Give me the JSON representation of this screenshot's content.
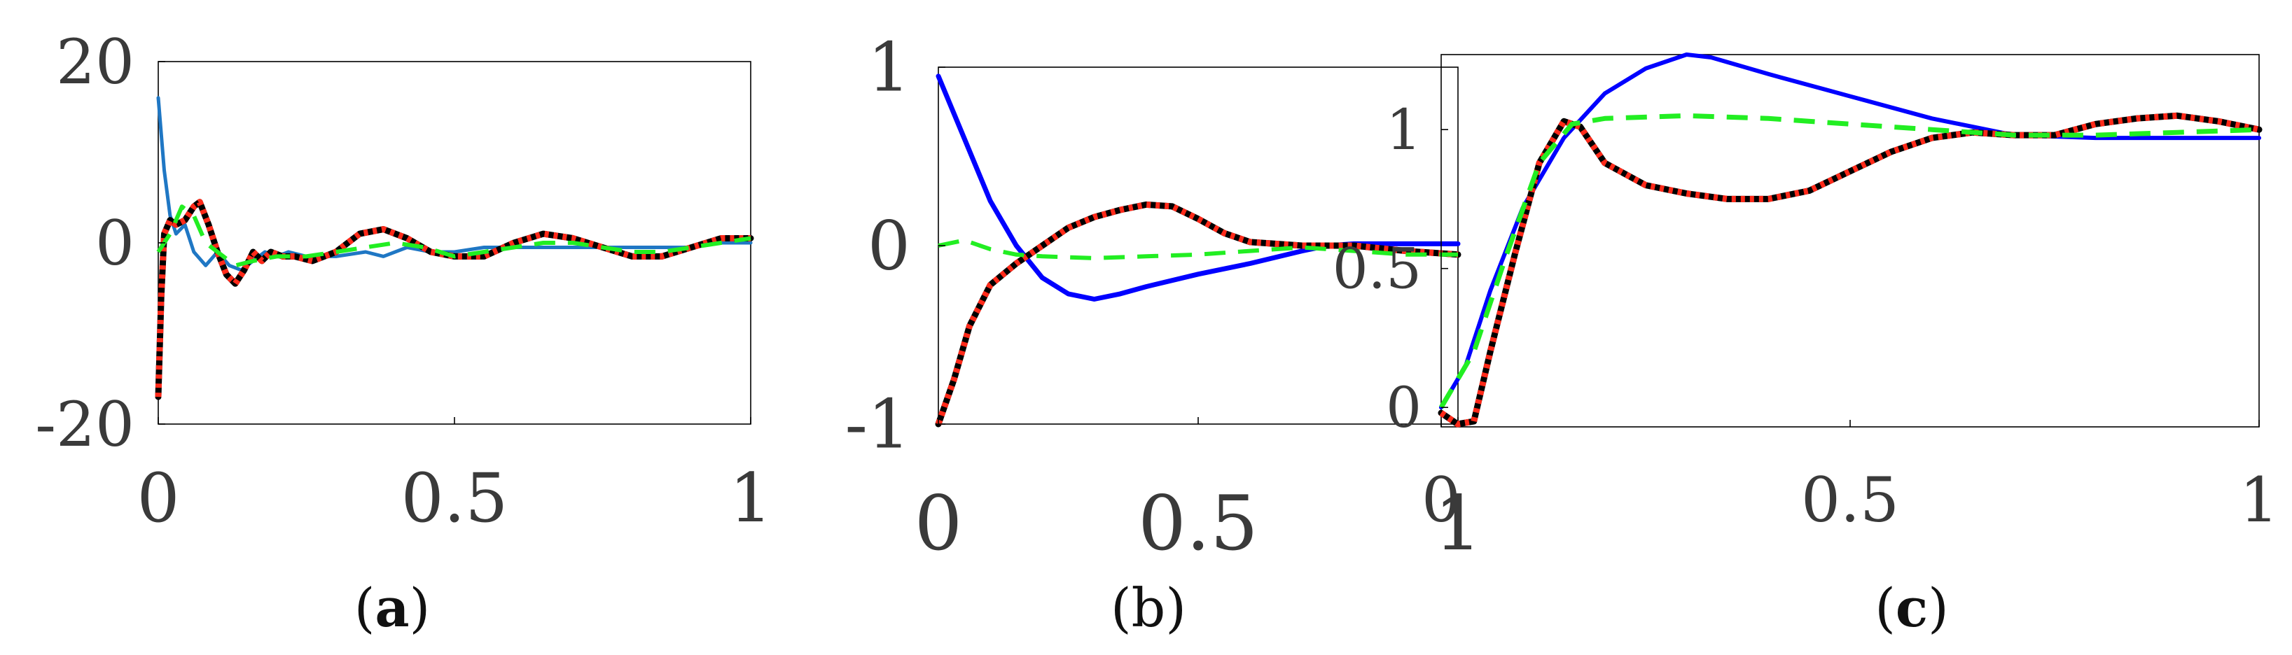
{
  "colors": {
    "blue": "#0000ff",
    "steelblue": "#1f77c4",
    "green": "#22ee22",
    "red": "#ff2a1a",
    "black": "#000000"
  },
  "chart_data": [
    {
      "type": "line",
      "caption": "a",
      "xlim": [
        0,
        1
      ],
      "ylim": [
        -20,
        20
      ],
      "xticks": [
        0,
        0.5,
        1
      ],
      "xtick_labels": [
        "0",
        "0.5",
        "1"
      ],
      "yticks": [
        -20,
        0,
        20
      ],
      "ytick_labels": [
        "-20",
        "0",
        "20"
      ],
      "grid": false,
      "series": [
        {
          "color": "#1f77c4",
          "style": "solid",
          "width": 5,
          "x": [
            0,
            0.01,
            0.02,
            0.03,
            0.045,
            0.06,
            0.08,
            0.1,
            0.12,
            0.14,
            0.16,
            0.18,
            0.2,
            0.22,
            0.25,
            0.3,
            0.35,
            0.38,
            0.42,
            0.46,
            0.5,
            0.55,
            0.6,
            0.65,
            0.7,
            0.75,
            0.8,
            0.85,
            0.9,
            0.95,
            1.0
          ],
          "y": [
            16,
            8,
            3,
            1,
            2,
            -1,
            -2.5,
            -1,
            -2.5,
            -3,
            -2,
            -1,
            -1.5,
            -1,
            -1.5,
            -1.5,
            -1,
            -1.5,
            -0.5,
            -1,
            -1,
            -0.5,
            -0.5,
            -0.5,
            -0.5,
            -0.5,
            -0.5,
            -0.5,
            -0.5,
            0,
            0
          ]
        },
        {
          "color": "#000000",
          "style": "solid",
          "width": 9,
          "x": [
            0,
            0.005,
            0.01,
            0.02,
            0.03,
            0.045,
            0.06,
            0.07,
            0.085,
            0.1,
            0.115,
            0.13,
            0.145,
            0.16,
            0.175,
            0.19,
            0.21,
            0.23,
            0.26,
            0.3,
            0.34,
            0.38,
            0.42,
            0.46,
            0.5,
            0.55,
            0.6,
            0.65,
            0.7,
            0.75,
            0.8,
            0.85,
            0.9,
            0.95,
            1.0
          ],
          "y": [
            -17,
            -6,
            1,
            2.5,
            2,
            2.5,
            4,
            4.5,
            2,
            -1,
            -3.5,
            -4.5,
            -3,
            -1,
            -2,
            -1,
            -1.5,
            -1.5,
            -2,
            -1,
            1,
            1.5,
            0.5,
            -1,
            -1.5,
            -1.5,
            0,
            1,
            0.5,
            -0.5,
            -1.5,
            -1.5,
            -0.5,
            0.5,
            0.5
          ]
        },
        {
          "color": "#ff2a1a",
          "style": "dotted",
          "width": 9,
          "x": [
            0,
            0.005,
            0.01,
            0.02,
            0.03,
            0.045,
            0.06,
            0.07,
            0.085,
            0.1,
            0.115,
            0.13,
            0.145,
            0.16,
            0.175,
            0.19,
            0.21,
            0.23,
            0.26,
            0.3,
            0.34,
            0.38,
            0.42,
            0.46,
            0.5,
            0.55,
            0.6,
            0.65,
            0.7,
            0.75,
            0.8,
            0.85,
            0.9,
            0.95,
            1.0
          ],
          "y": [
            -17,
            -6,
            1,
            2.5,
            2,
            2.5,
            4,
            4.5,
            2,
            -1,
            -3.5,
            -4.5,
            -3,
            -1,
            -2,
            -1,
            -1.5,
            -1.5,
            -2,
            -1,
            1,
            1.5,
            0.5,
            -1,
            -1.5,
            -1.5,
            0,
            1,
            0.5,
            -0.5,
            -1.5,
            -1.5,
            -0.5,
            0.5,
            0.5
          ]
        },
        {
          "color": "#22ee22",
          "style": "dashed",
          "width": 6,
          "x": [
            0,
            0.02,
            0.04,
            0.06,
            0.08,
            0.1,
            0.13,
            0.16,
            0.2,
            0.25,
            0.3,
            0.35,
            0.4,
            0.45,
            0.5,
            0.55,
            0.6,
            0.65,
            0.7,
            0.75,
            0.8,
            0.85,
            0.9,
            0.95,
            1.0
          ],
          "y": [
            -1,
            1,
            4,
            3,
            0,
            -1,
            -2.5,
            -2,
            -1.5,
            -1.5,
            -1,
            -0.5,
            0,
            -0.5,
            -1.5,
            -1,
            -0.5,
            0,
            0,
            -0.5,
            -1,
            -1,
            -0.5,
            0,
            0.5
          ]
        }
      ]
    },
    {
      "type": "line",
      "caption": "b",
      "xlim": [
        0,
        1
      ],
      "ylim": [
        -1,
        1
      ],
      "xticks": [
        0,
        0.5,
        1
      ],
      "xtick_labels": [
        "0",
        "0.5",
        "1"
      ],
      "yticks": [
        -1,
        0,
        1
      ],
      "ytick_labels": [
        "-1",
        "0",
        "1"
      ],
      "grid": false,
      "series": [
        {
          "color": "#0000ff",
          "style": "solid",
          "width": 7,
          "x": [
            0,
            0.05,
            0.1,
            0.15,
            0.2,
            0.25,
            0.3,
            0.35,
            0.4,
            0.5,
            0.6,
            0.7,
            0.75,
            0.8,
            0.9,
            1.0
          ],
          "y": [
            0.95,
            0.6,
            0.25,
            0.0,
            -0.18,
            -0.27,
            -0.3,
            -0.27,
            -0.23,
            -0.16,
            -0.1,
            -0.03,
            0.0,
            0.01,
            0.01,
            0.01
          ]
        },
        {
          "color": "#000000",
          "style": "solid",
          "width": 9,
          "x": [
            0,
            0.03,
            0.06,
            0.1,
            0.15,
            0.2,
            0.25,
            0.3,
            0.35,
            0.4,
            0.45,
            0.5,
            0.55,
            0.6,
            0.7,
            0.8,
            0.9,
            1.0
          ],
          "y": [
            -1,
            -0.75,
            -0.45,
            -0.22,
            -0.1,
            0.0,
            0.1,
            0.16,
            0.2,
            0.23,
            0.22,
            0.15,
            0.07,
            0.02,
            0.0,
            0.0,
            -0.03,
            -0.05
          ]
        },
        {
          "color": "#ff2a1a",
          "style": "dotted",
          "width": 9,
          "x": [
            0,
            0.03,
            0.06,
            0.1,
            0.15,
            0.2,
            0.25,
            0.3,
            0.35,
            0.4,
            0.45,
            0.5,
            0.55,
            0.6,
            0.7,
            0.8,
            0.9,
            1.0
          ],
          "y": [
            -1,
            -0.75,
            -0.45,
            -0.22,
            -0.1,
            0.0,
            0.1,
            0.16,
            0.2,
            0.23,
            0.22,
            0.15,
            0.07,
            0.02,
            0.0,
            0.0,
            -0.03,
            -0.05
          ]
        },
        {
          "color": "#22ee22",
          "style": "dashed",
          "width": 6,
          "x": [
            0,
            0.05,
            0.1,
            0.15,
            0.2,
            0.3,
            0.4,
            0.5,
            0.6,
            0.7,
            0.8,
            0.9,
            1.0
          ],
          "y": [
            0.0,
            0.03,
            -0.02,
            -0.05,
            -0.06,
            -0.07,
            -0.06,
            -0.05,
            -0.03,
            -0.01,
            -0.03,
            -0.05,
            -0.05
          ]
        }
      ]
    },
    {
      "type": "line",
      "caption": "c",
      "xlim": [
        0,
        1
      ],
      "ylim": [
        -0.07,
        1.27
      ],
      "xticks": [
        0,
        0.5,
        1
      ],
      "xtick_labels": [
        "0",
        "0.5",
        "1"
      ],
      "yticks": [
        0,
        0.5,
        1
      ],
      "ytick_labels": [
        "0",
        "0.5",
        "1"
      ],
      "grid": false,
      "series": [
        {
          "color": "#0000ff",
          "style": "solid",
          "width": 6,
          "x": [
            0,
            0.03,
            0.06,
            0.1,
            0.15,
            0.2,
            0.25,
            0.3,
            0.33,
            0.4,
            0.5,
            0.6,
            0.7,
            0.8,
            0.9,
            1.0
          ],
          "y": [
            0.0,
            0.15,
            0.42,
            0.72,
            0.97,
            1.13,
            1.22,
            1.27,
            1.26,
            1.2,
            1.12,
            1.04,
            0.98,
            0.97,
            0.97,
            0.97
          ]
        },
        {
          "color": "#000000",
          "style": "solid",
          "width": 9,
          "x": [
            0,
            0.02,
            0.04,
            0.06,
            0.09,
            0.12,
            0.15,
            0.17,
            0.2,
            0.25,
            0.3,
            0.35,
            0.4,
            0.45,
            0.5,
            0.55,
            0.6,
            0.65,
            0.7,
            0.75,
            0.8,
            0.85,
            0.9,
            0.95,
            1.0
          ],
          "y": [
            -0.02,
            -0.06,
            -0.05,
            0.2,
            0.55,
            0.88,
            1.03,
            1.01,
            0.88,
            0.8,
            0.77,
            0.75,
            0.75,
            0.78,
            0.85,
            0.92,
            0.97,
            0.99,
            0.98,
            0.98,
            1.02,
            1.04,
            1.05,
            1.03,
            1.0
          ]
        },
        {
          "color": "#ff2a1a",
          "style": "dotted",
          "width": 9,
          "x": [
            0,
            0.02,
            0.04,
            0.06,
            0.09,
            0.12,
            0.15,
            0.17,
            0.2,
            0.25,
            0.3,
            0.35,
            0.4,
            0.45,
            0.5,
            0.55,
            0.6,
            0.65,
            0.7,
            0.75,
            0.8,
            0.85,
            0.9,
            0.95,
            1.0
          ],
          "y": [
            -0.02,
            -0.06,
            -0.05,
            0.2,
            0.55,
            0.88,
            1.03,
            1.01,
            0.88,
            0.8,
            0.77,
            0.75,
            0.75,
            0.78,
            0.85,
            0.92,
            0.97,
            0.99,
            0.98,
            0.98,
            1.02,
            1.04,
            1.05,
            1.03,
            1.0
          ]
        },
        {
          "color": "#22ee22",
          "style": "dashed",
          "width": 7,
          "x": [
            0,
            0.04,
            0.08,
            0.12,
            0.16,
            0.2,
            0.3,
            0.4,
            0.5,
            0.6,
            0.7,
            0.8,
            0.9,
            1.0
          ],
          "y": [
            0.0,
            0.2,
            0.55,
            0.88,
            1.02,
            1.04,
            1.05,
            1.04,
            1.02,
            1.0,
            0.98,
            0.98,
            0.99,
            1.0
          ]
        }
      ]
    }
  ]
}
